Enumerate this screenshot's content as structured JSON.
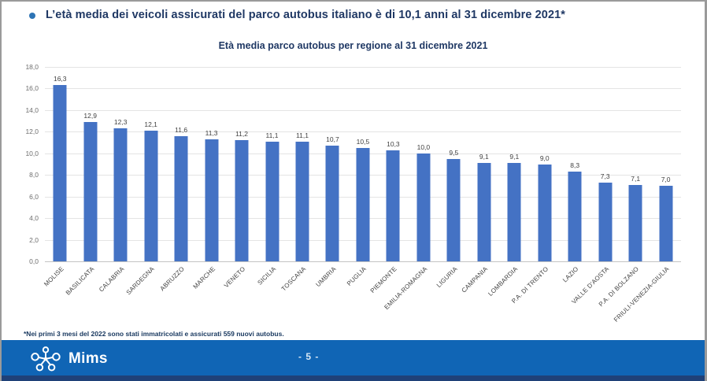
{
  "header": {
    "bullet_text": "L’età media dei veicoli assicurati del parco autobus italiano è di 10,1 anni al 31 dicembre 2021*"
  },
  "chart_data": {
    "type": "bar",
    "title": "Età media parco autobus per regione al 31 dicembre 2021",
    "categories": [
      "MOLISE",
      "BASILICATA",
      "CALABRIA",
      "SARDEGNA",
      "ABRUZZO",
      "MARCHE",
      "VENETO",
      "SICILIA",
      "TOSCANA",
      "UMBRIA",
      "PUGLIA",
      "PIEMONTE",
      "EMILIA-ROMAGNA",
      "LIGURIA",
      "CAMPANIA",
      "LOMBARDIA",
      "P.A. DI TRENTO",
      "LAZIO",
      "VALLE D'AOSTA",
      "P.A. DI BOLZANO",
      "FRIULI-VENEZIA-GIULIA"
    ],
    "values": [
      16.3,
      12.9,
      12.3,
      12.1,
      11.6,
      11.3,
      11.2,
      11.1,
      11.1,
      10.7,
      10.5,
      10.3,
      10.0,
      9.5,
      9.1,
      9.1,
      9.0,
      8.3,
      7.3,
      7.1,
      7.0
    ],
    "value_labels": [
      "16,3",
      "12,9",
      "12,3",
      "12,1",
      "11,6",
      "11,3",
      "11,2",
      "11,1",
      "11,1",
      "10,7",
      "10,5",
      "10,3",
      "10,0",
      "9,5",
      "9,1",
      "9,1",
      "9,0",
      "8,3",
      "7,3",
      "7,1",
      "7,0"
    ],
    "xlabel": "",
    "ylabel": "",
    "ylim": [
      0,
      18
    ],
    "yticks": [
      0,
      2,
      4,
      6,
      8,
      10,
      12,
      14,
      16,
      18
    ],
    "ytick_labels": [
      "0,0",
      "2,0",
      "4,0",
      "6,0",
      "8,0",
      "10,0",
      "12,0",
      "14,0",
      "16,0",
      "18,0"
    ],
    "bar_color": "#4472c4",
    "grid": true,
    "legend": false
  },
  "footnote": "*Nei primi 3 mesi del 2022 sono stati immatricolati e assicurati 559 nuovi autobus.",
  "footer": {
    "brand": "Mims",
    "page_label": "- 5 -",
    "bar_color": "#1065b5",
    "strip_color": "#1f4178"
  },
  "colors": {
    "headline_navy": "#1f3864",
    "bullet_blue": "#2e74b5"
  }
}
